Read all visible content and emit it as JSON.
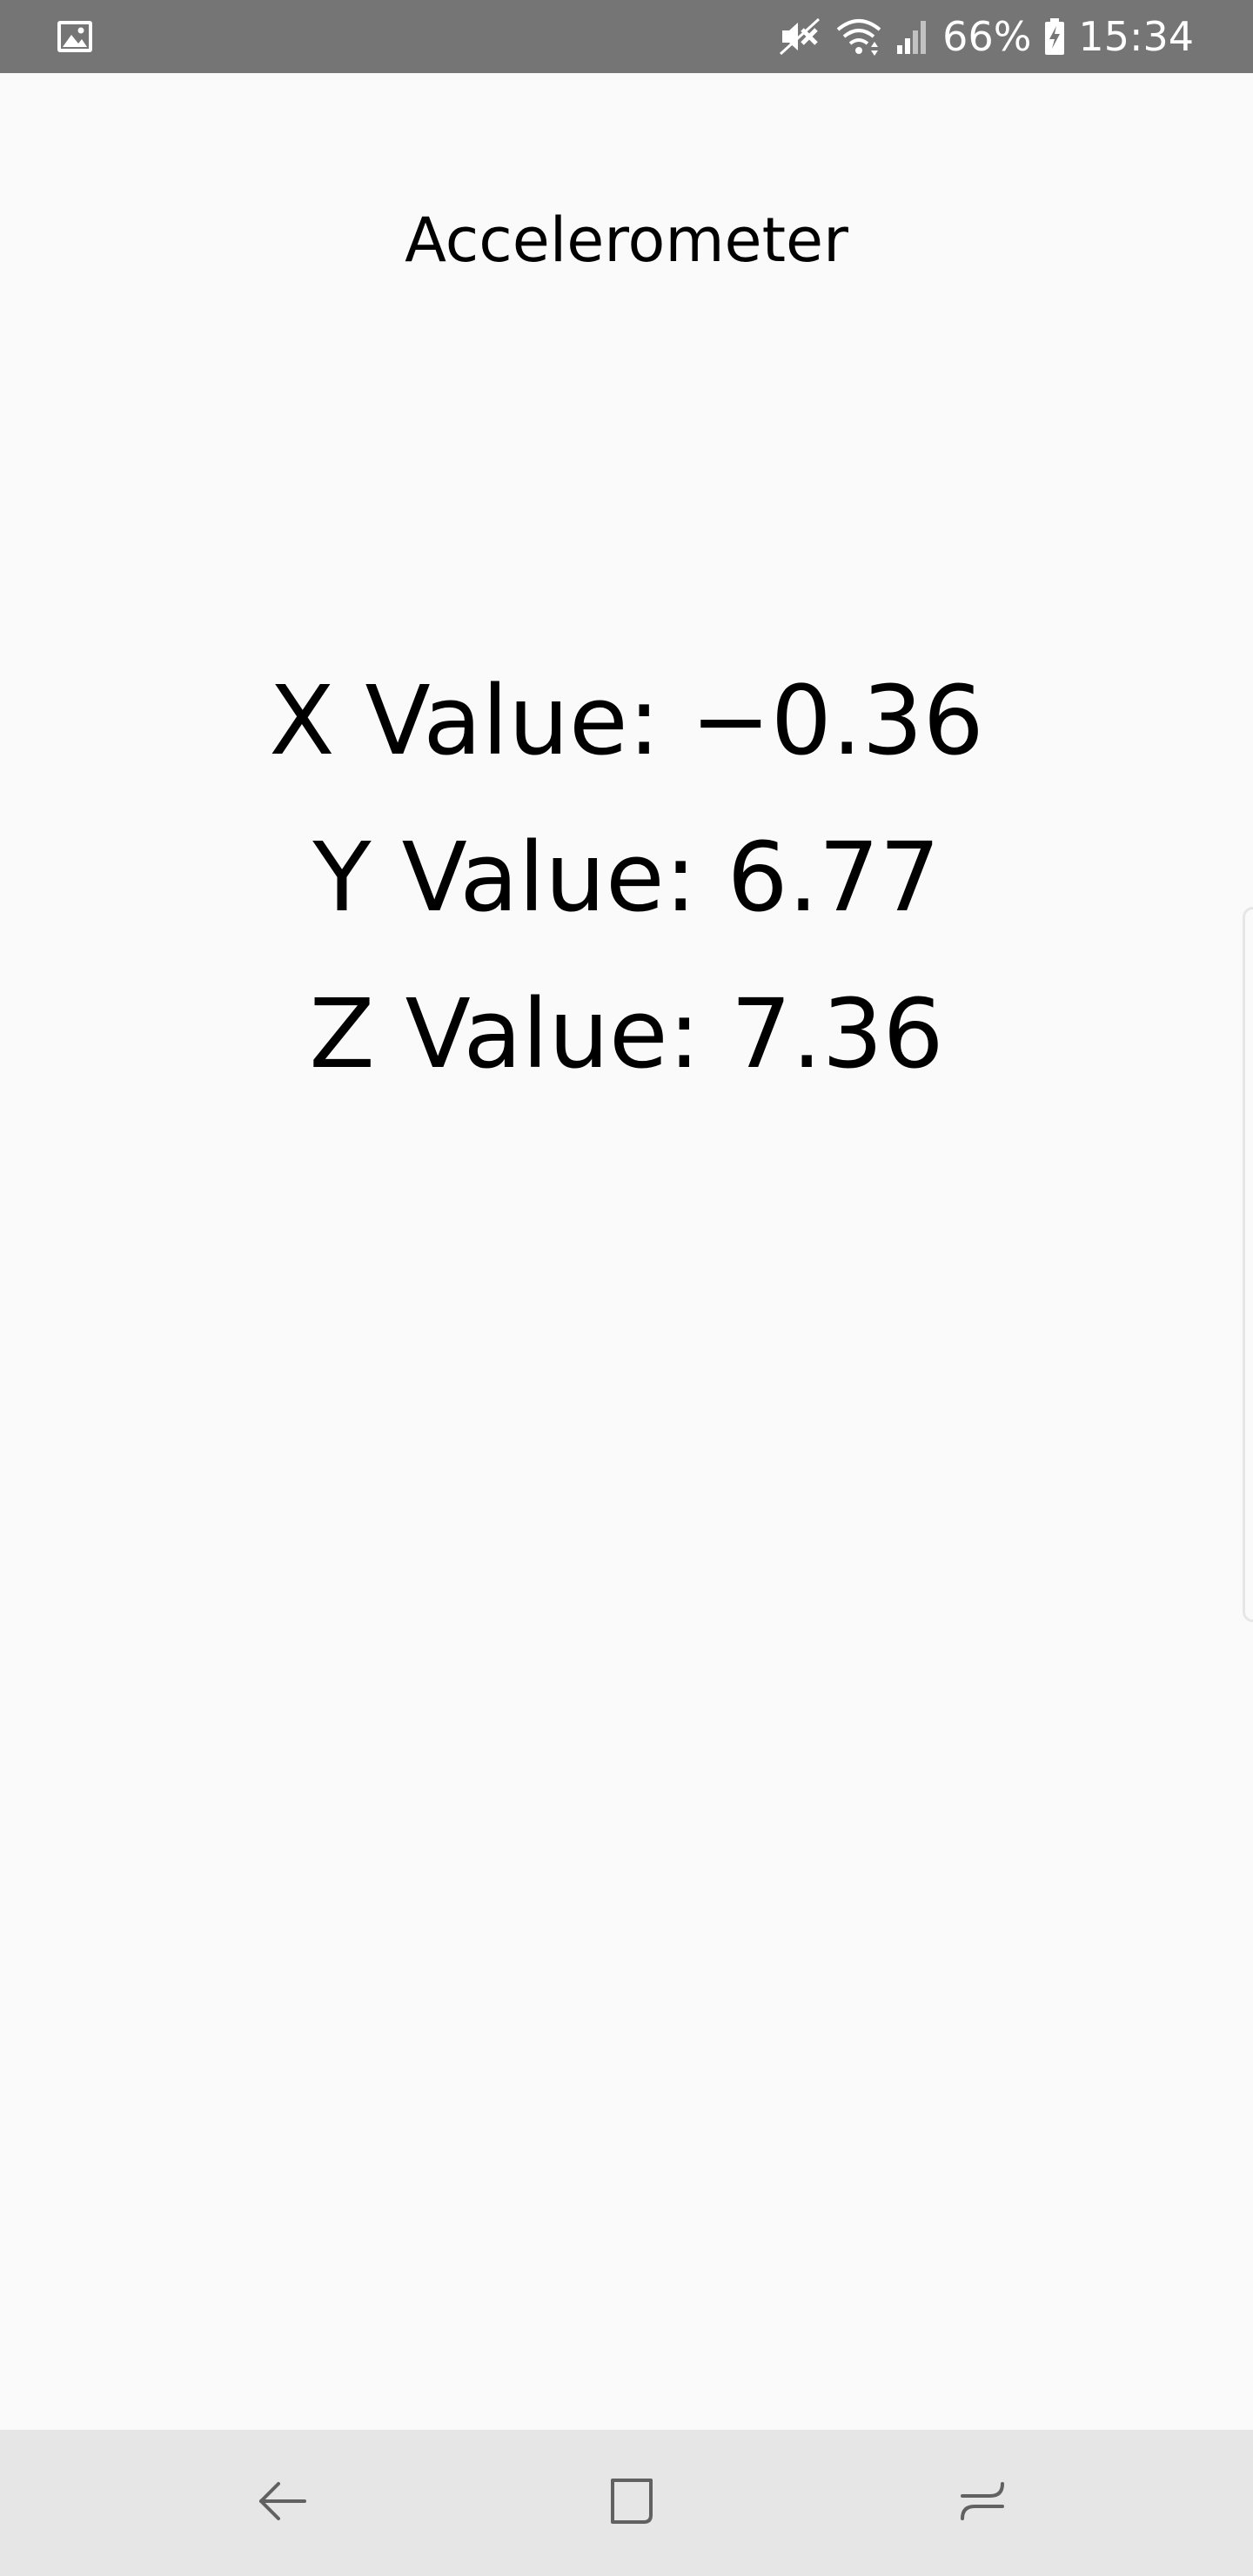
{
  "status_bar": {
    "battery_percent": "66%",
    "time": "15:34",
    "icons": [
      "image-notification-icon",
      "mute-icon",
      "wifi-icon",
      "signal-icon",
      "battery-charging-icon"
    ]
  },
  "app": {
    "title": "Accelerometer"
  },
  "readings": {
    "x": {
      "label": "X Value: ",
      "value": "−0.36"
    },
    "y": {
      "label": "Y Value: ",
      "value": "6.77"
    },
    "z": {
      "label": "Z Value: ",
      "value": "7.36"
    }
  },
  "navigation": {
    "icons": [
      "back-icon",
      "home-icon",
      "recent-apps-icon"
    ]
  },
  "colors": {
    "status_bar": "#757575",
    "background": "#fafafa",
    "nav_bar": "#e6e6e6",
    "text": "#000000"
  }
}
